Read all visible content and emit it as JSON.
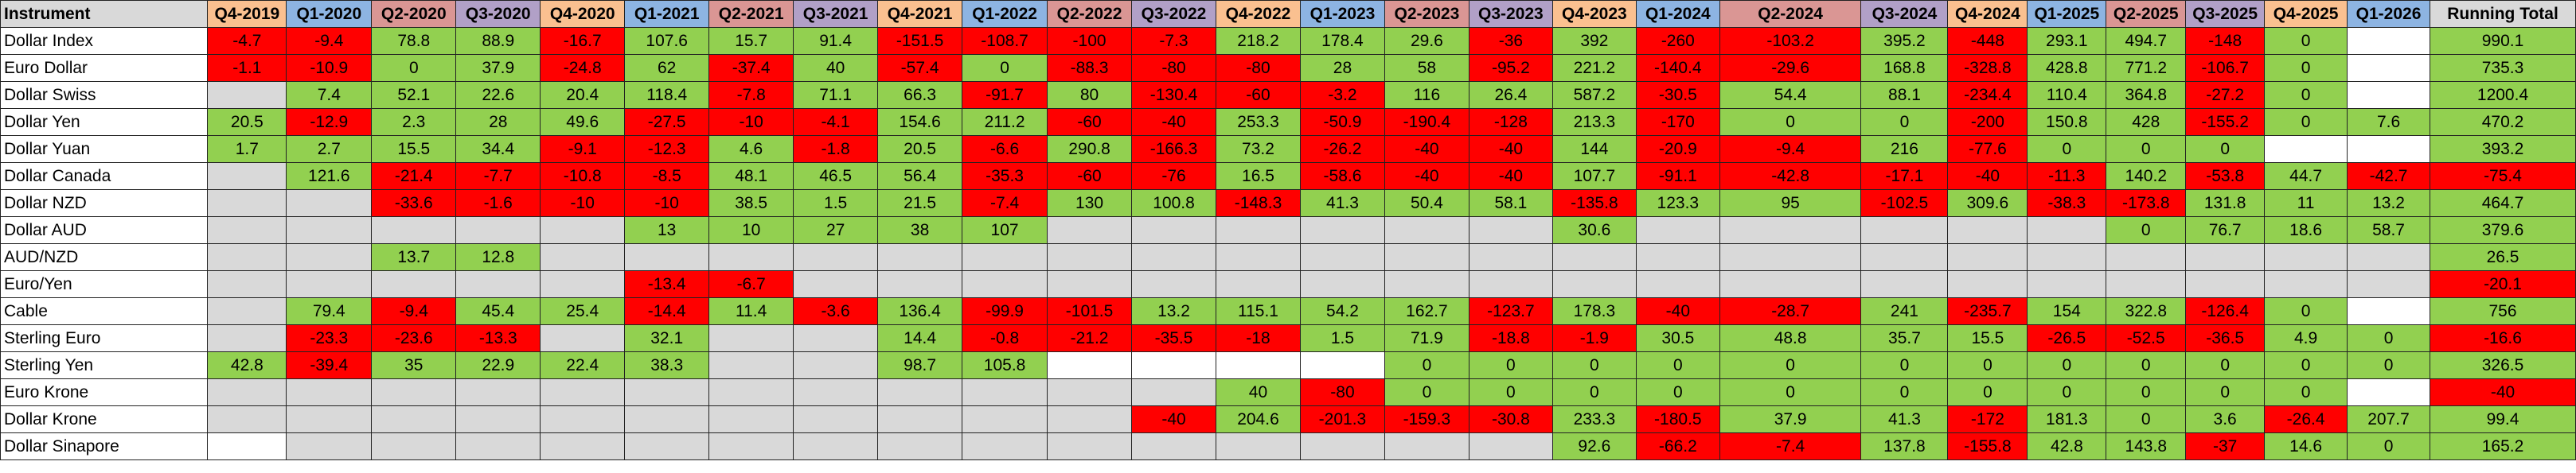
{
  "header": {
    "instrument_label": "Instrument",
    "total_label": "Running Total",
    "quarters": [
      "Q4-2019",
      "Q1-2020",
      "Q2-2020",
      "Q3-2020",
      "Q4-2020",
      "Q1-2021",
      "Q2-2021",
      "Q3-2021",
      "Q4-2021",
      "Q1-2022",
      "Q2-2022",
      "Q3-2022",
      "Q4-2022",
      "Q1-2023",
      "Q2-2023",
      "Q3-2023",
      "Q4-2023",
      "Q1-2024",
      "Q2-2024",
      "Q3-2024",
      "Q4-2024",
      "Q1-2025",
      "Q2-2025",
      "Q3-2025",
      "Q4-2025",
      "Q1-2026"
    ]
  },
  "colors": {
    "positive": "#92d050",
    "negative": "#ff0000",
    "empty": "#d9d9d9",
    "q1_header": "#8db4e2",
    "q2_header": "#da9694",
    "q3_header": "#b1a0c7",
    "q4_header": "#fac090"
  },
  "rows": [
    {
      "instrument": "Dollar Index",
      "values": [
        "-4.7",
        "-9.4",
        "78.8",
        "88.9",
        "-16.7",
        "107.6",
        "15.7",
        "91.4",
        "-151.5",
        "-108.7",
        "-100",
        "-7.3",
        "218.2",
        "178.4",
        "29.6",
        "-36",
        "392",
        "-260",
        "-103.2",
        "395.2",
        "-448",
        "293.1",
        "494.7",
        "-148",
        "0",
        ""
      ],
      "total": "990.1"
    },
    {
      "instrument": "Euro Dollar",
      "values": [
        "-1.1",
        "-10.9",
        "0",
        "37.9",
        "-24.8",
        "62",
        "-37.4",
        "40",
        "-57.4",
        "0",
        "-88.3",
        "-80",
        "-80",
        "28",
        "58",
        "-95.2",
        "221.2",
        "-140.4",
        "-29.6",
        "168.8",
        "-328.8",
        "428.8",
        "771.2",
        "-106.7",
        "0",
        ""
      ],
      "total": "735.3"
    },
    {
      "instrument": "Dollar Swiss",
      "values": [
        null,
        "7.4",
        "52.1",
        "22.6",
        "20.4",
        "118.4",
        "-7.8",
        "71.1",
        "66.3",
        "-91.7",
        "80",
        "-130.4",
        "-60",
        "-3.2",
        "116",
        "26.4",
        "587.2",
        "-30.5",
        "54.4",
        "88.1",
        "-234.4",
        "110.4",
        "364.8",
        "-27.2",
        "0",
        ""
      ],
      "total": "1200.4"
    },
    {
      "instrument": "Dollar Yen",
      "values": [
        "20.5",
        "-12.9",
        "2.3",
        "28",
        "49.6",
        "-27.5",
        "-10",
        "-4.1",
        "154.6",
        "211.2",
        "-60",
        "-40",
        "253.3",
        "-50.9",
        "-190.4",
        "-128",
        "213.3",
        "-170",
        "0",
        "0",
        "-200",
        "150.8",
        "428",
        "-155.2",
        "0",
        "7.6"
      ],
      "total": "470.2"
    },
    {
      "instrument": "Dollar Yuan",
      "values": [
        "1.7",
        "2.7",
        "15.5",
        "34.4",
        "-9.1",
        "-12.3",
        "4.6",
        "-1.8",
        "20.5",
        "-6.6",
        "290.8",
        "-166.3",
        "73.2",
        "-26.2",
        "-40",
        "-40",
        "144",
        "-20.9",
        "-9.4",
        "216",
        "-77.6",
        "0",
        "0",
        "0",
        "",
        ""
      ],
      "total": "393.2"
    },
    {
      "instrument": "Dollar Canada",
      "values": [
        null,
        "121.6",
        "-21.4",
        "-7.7",
        "-10.8",
        "-8.5",
        "48.1",
        "46.5",
        "56.4",
        "-35.3",
        "-60",
        "-76",
        "16.5",
        "-58.6",
        "-40",
        "-40",
        "107.7",
        "-91.1",
        "-42.8",
        "-17.1",
        "-40",
        "-11.3",
        "140.2",
        "-53.8",
        "44.7",
        "-42.7"
      ],
      "total": "-75.4"
    },
    {
      "instrument": "Dollar NZD",
      "values": [
        null,
        null,
        "-33.6",
        "-1.6",
        "-10",
        "-10",
        "38.5",
        "1.5",
        "21.5",
        "-7.4",
        "130",
        "100.8",
        "-148.3",
        "41.3",
        "50.4",
        "58.1",
        "-135.8",
        "123.3",
        "95",
        "-102.5",
        "309.6",
        "-38.3",
        "-173.8",
        "131.8",
        "11",
        "13.2"
      ],
      "total": "464.7"
    },
    {
      "instrument": "Dollar AUD",
      "values": [
        null,
        null,
        null,
        null,
        null,
        "13",
        "10",
        "27",
        "38",
        "107",
        null,
        null,
        null,
        null,
        null,
        null,
        "30.6",
        null,
        null,
        null,
        null,
        null,
        "0",
        "76.7",
        "18.6",
        "58.7"
      ],
      "total": "379.6"
    },
    {
      "instrument": "AUD/NZD",
      "values": [
        null,
        null,
        "13.7",
        "12.8",
        null,
        null,
        null,
        null,
        null,
        null,
        null,
        null,
        null,
        null,
        null,
        null,
        null,
        null,
        null,
        null,
        null,
        null,
        null,
        null,
        null,
        null
      ],
      "total": "26.5"
    },
    {
      "instrument": "Euro/Yen",
      "values": [
        null,
        null,
        null,
        null,
        null,
        "-13.4",
        "-6.7",
        null,
        null,
        null,
        null,
        null,
        null,
        null,
        null,
        null,
        null,
        null,
        null,
        null,
        null,
        null,
        null,
        null,
        null,
        null
      ],
      "total": "-20.1"
    },
    {
      "instrument": "Cable",
      "values": [
        null,
        "79.4",
        "-9.4",
        "45.4",
        "25.4",
        "-14.4",
        "11.4",
        "-3.6",
        "136.4",
        "-99.9",
        "-101.5",
        "13.2",
        "115.1",
        "54.2",
        "162.7",
        "-123.7",
        "178.3",
        "-40",
        "-28.7",
        "241",
        "-235.7",
        "154",
        "322.8",
        "-126.4",
        "0",
        ""
      ],
      "total": "756"
    },
    {
      "instrument": "Sterling Euro",
      "values": [
        null,
        "-23.3",
        "-23.6",
        "-13.3",
        null,
        "32.1",
        null,
        null,
        "14.4",
        "-0.8",
        "-21.2",
        "-35.5",
        "-18",
        "1.5",
        "71.9",
        "-18.8",
        "-1.9",
        "30.5",
        "48.8",
        "35.7",
        "15.5",
        "-26.5",
        "-52.5",
        "-36.5",
        "4.9",
        "0"
      ],
      "total": "-16.6"
    },
    {
      "instrument": "Sterling Yen",
      "values": [
        "42.8",
        "-39.4",
        "35",
        "22.9",
        "22.4",
        "38.3",
        null,
        null,
        "98.7",
        "105.8",
        "",
        "",
        "",
        "",
        "0",
        "0",
        "0",
        "0",
        "0",
        "0",
        "0",
        "0",
        "0",
        "0",
        "0",
        "0"
      ],
      "total": "326.5"
    },
    {
      "instrument": "Euro Krone",
      "values": [
        null,
        null,
        null,
        null,
        null,
        null,
        null,
        null,
        null,
        null,
        null,
        null,
        "40",
        "-80",
        "0",
        "0",
        "0",
        "0",
        "0",
        "0",
        "0",
        "0",
        "0",
        "0",
        "0",
        ""
      ],
      "total": "-40"
    },
    {
      "instrument": "Dollar Krone",
      "values": [
        null,
        null,
        null,
        null,
        null,
        null,
        null,
        null,
        null,
        null,
        null,
        "-40",
        "204.6",
        "-201.3",
        "-159.3",
        "-30.8",
        "233.3",
        "-180.5",
        "37.9",
        "41.3",
        "-172",
        "181.3",
        "0",
        "3.6",
        "-26.4",
        "207.7"
      ],
      "total": "99.4"
    },
    {
      "instrument": "Dollar Sinapore",
      "values": [
        "",
        null,
        null,
        null,
        null,
        null,
        null,
        null,
        null,
        null,
        null,
        null,
        null,
        null,
        null,
        null,
        "92.6",
        "-66.2",
        "-7.4",
        "137.8",
        "-155.8",
        "42.8",
        "143.8",
        "-37",
        "14.6",
        "0"
      ],
      "total": "165.2"
    }
  ]
}
